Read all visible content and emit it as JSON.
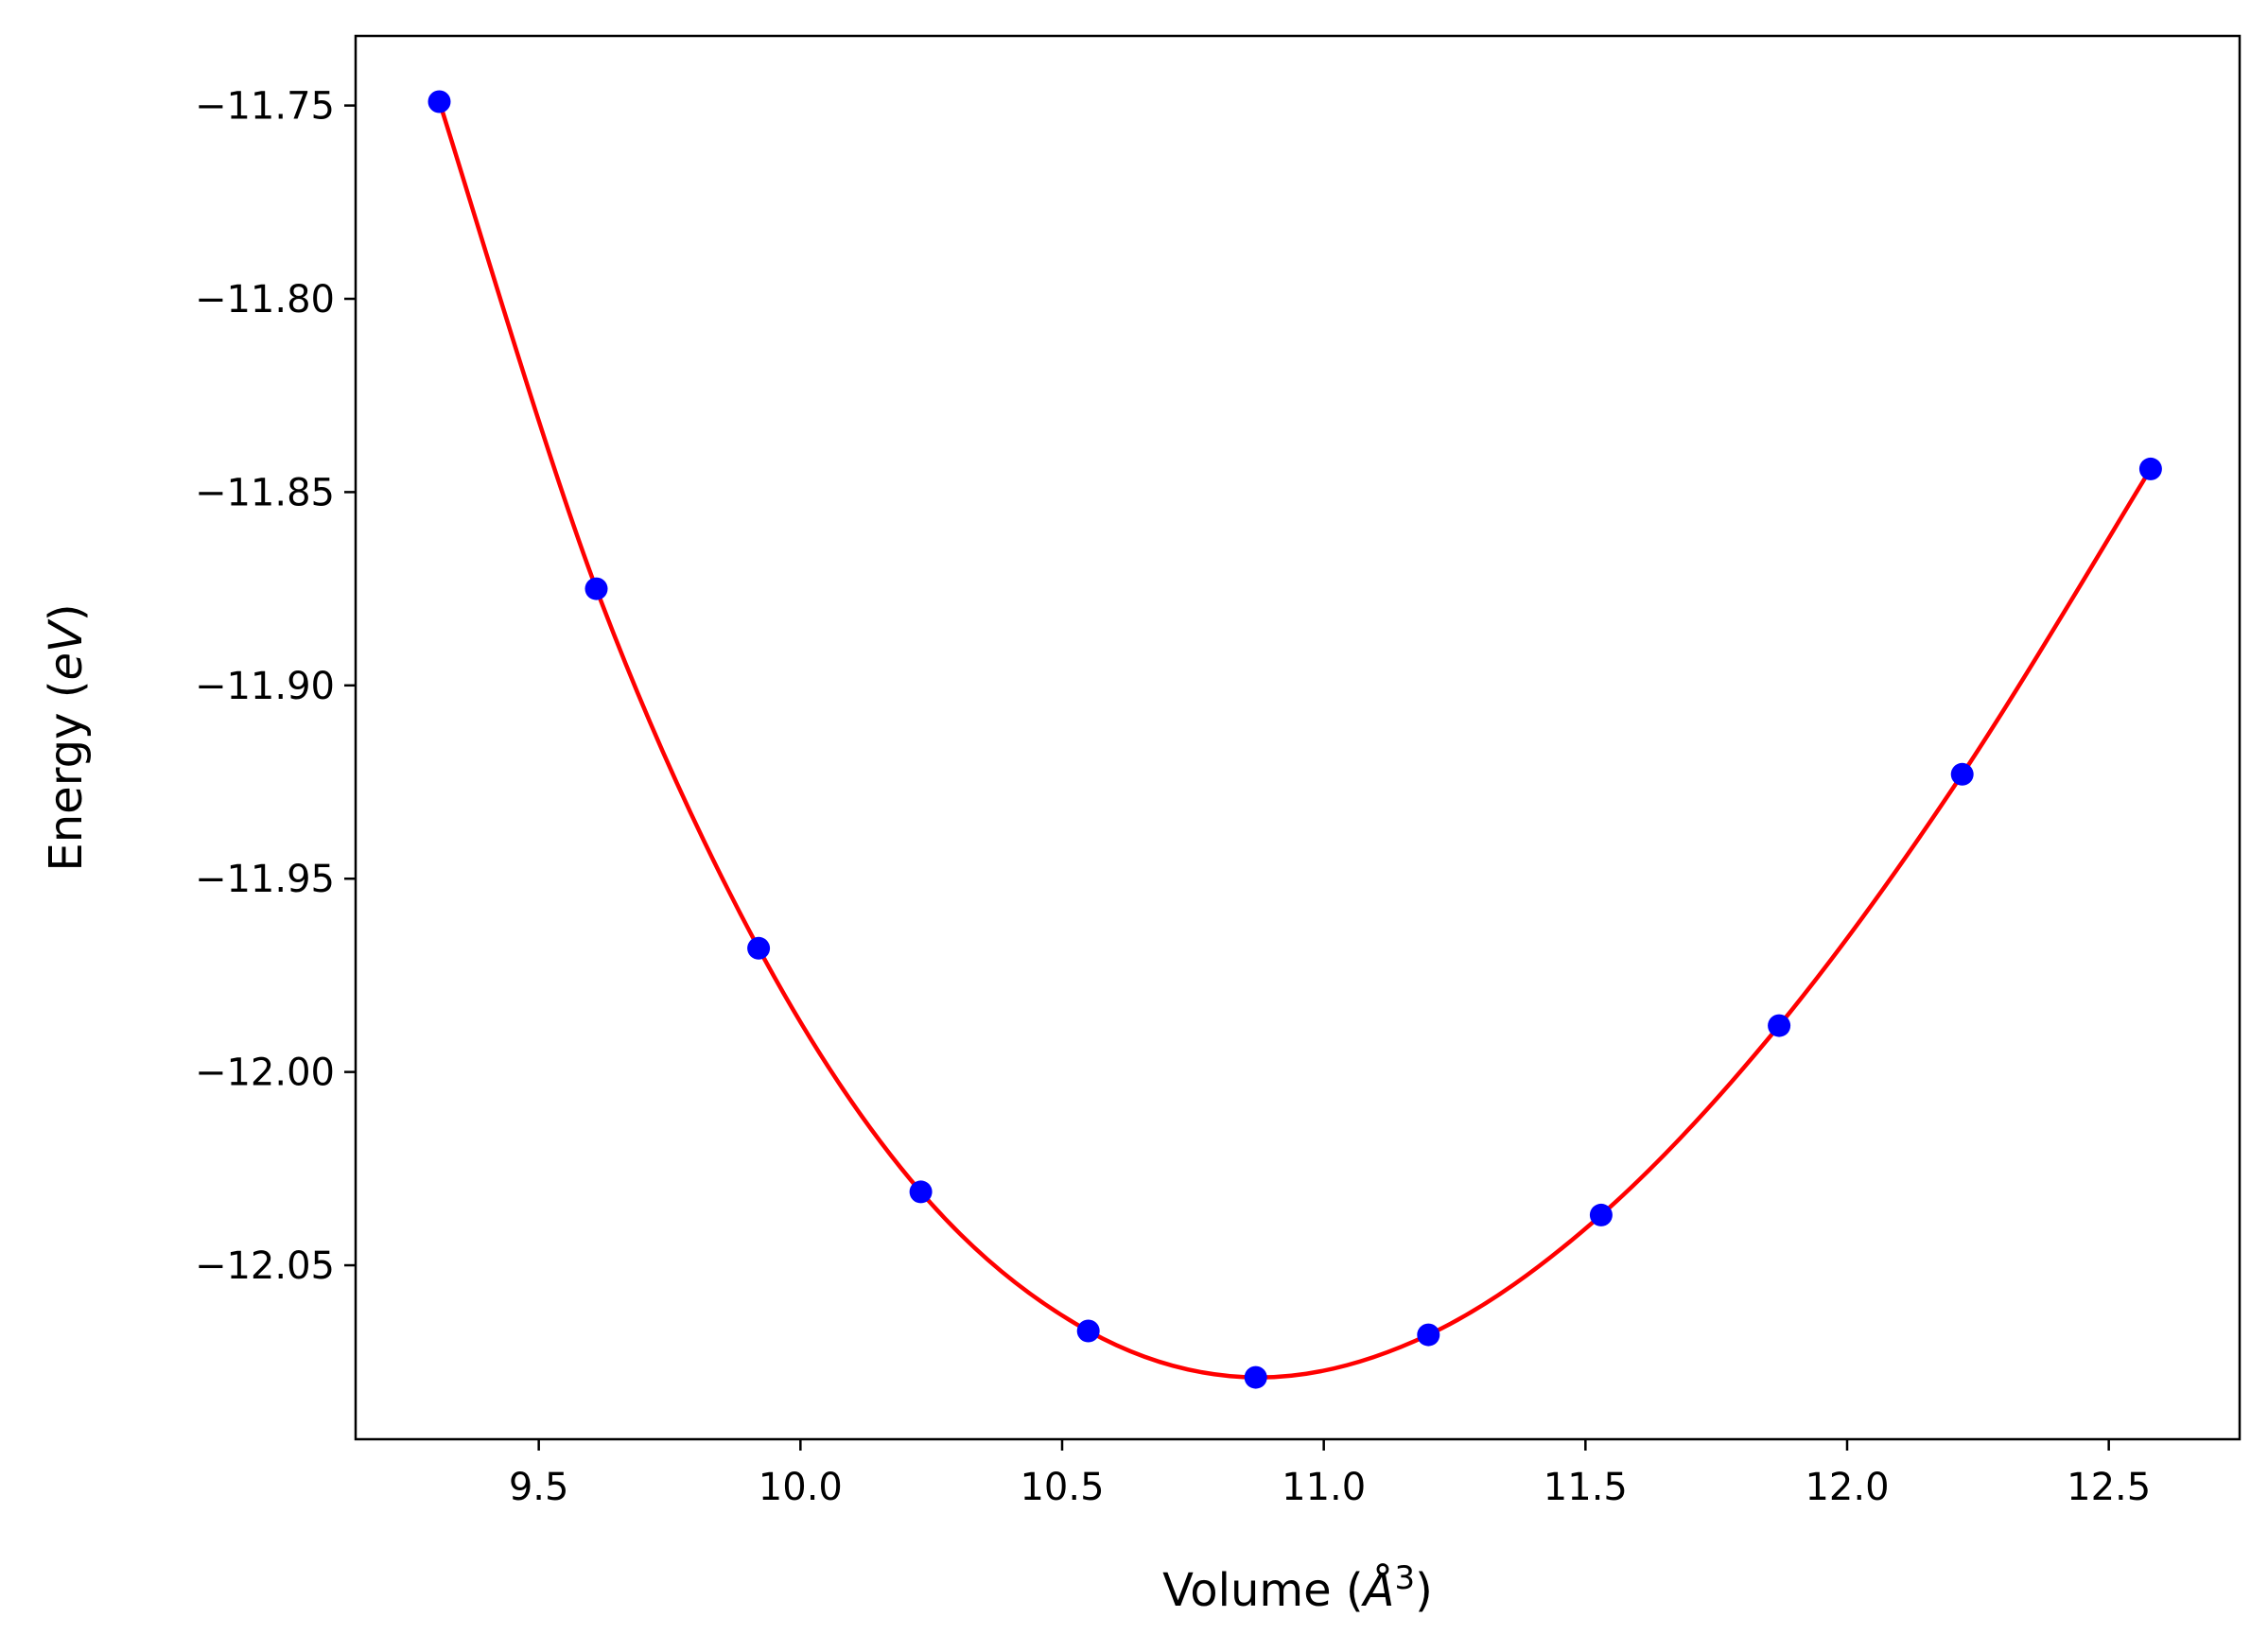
{
  "chart_data": {
    "type": "line",
    "title": "",
    "xlabel": "Volume (",
    "xlabel_unit": "Å",
    "xlabel_exp": "3",
    "xlabel_close": ")",
    "ylabel": "Energy (",
    "ylabel_unit": "eV",
    "ylabel_close": ")",
    "xlim": [
      9.15,
      12.75
    ],
    "ylim": [
      -12.095,
      -11.732
    ],
    "xticks": [
      9.5,
      10.0,
      10.5,
      11.0,
      11.5,
      12.0,
      12.5
    ],
    "xtick_labels": [
      "9.5",
      "10.0",
      "10.5",
      "11.0",
      "11.5",
      "12.0",
      "12.5"
    ],
    "yticks": [
      -11.75,
      -11.8,
      -11.85,
      -11.9,
      -11.95,
      -12.0,
      -12.05
    ],
    "ytick_labels": [
      "−11.75",
      "−11.80",
      "−11.85",
      "−11.90",
      "−11.95",
      "−12.00",
      "−12.05"
    ],
    "grid": false,
    "series": [
      {
        "kind": "scatter",
        "color": "#0000ff",
        "x": [
          9.31,
          9.61,
          9.92,
          10.23,
          10.55,
          10.87,
          11.2,
          11.53,
          11.87,
          12.22,
          12.58
        ],
        "y": [
          -11.749,
          -11.875,
          -11.968,
          -12.031,
          -12.067,
          -12.079,
          -12.068,
          -12.037,
          -11.988,
          -11.923,
          -11.844
        ]
      },
      {
        "kind": "line",
        "color": "#ff0000",
        "fit": "equation-of-state",
        "x": [
          9.31,
          9.61,
          9.92,
          10.23,
          10.55,
          10.87,
          11.2,
          11.53,
          11.87,
          12.22,
          12.58
        ],
        "y": [
          -11.749,
          -11.875,
          -11.968,
          -12.031,
          -12.067,
          -12.079,
          -12.068,
          -12.037,
          -11.988,
          -11.923,
          -11.844
        ]
      }
    ]
  }
}
